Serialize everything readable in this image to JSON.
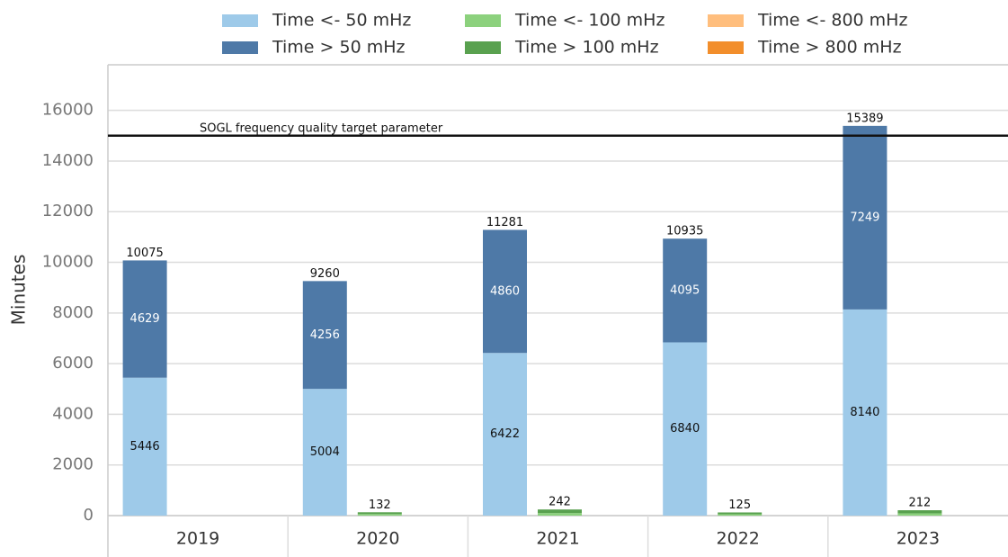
{
  "chart_data": {
    "type": "stacked-grouped-bar",
    "y_label": "Minutes",
    "categories": [
      "2019",
      "2020",
      "2021",
      "2022",
      "2023"
    ],
    "series": [
      {
        "name": "Time <- 50 mHz",
        "color": "#9ecae9",
        "stack": 0,
        "show_labels": true,
        "label_color": "#111111",
        "values": [
          5446,
          5004,
          6422,
          6840,
          8140
        ]
      },
      {
        "name": "Time > 50 mHz",
        "color": "#4e79a7",
        "stack": 0,
        "show_labels": true,
        "label_color": "#ffffff",
        "values": [
          4629,
          4256,
          4860,
          4095,
          7249
        ]
      },
      {
        "name": "Time <- 100 mHz",
        "color": "#8cd17d",
        "stack": 1,
        "show_labels": false,
        "values": [
          0,
          60,
          100,
          55,
          90
        ]
      },
      {
        "name": "Time > 100 mHz",
        "color": "#59a14f",
        "stack": 1,
        "show_labels": false,
        "values": [
          0,
          72,
          142,
          70,
          122
        ]
      },
      {
        "name": "Time <- 800 mHz",
        "color": "#ffbe7d",
        "stack": 2,
        "show_labels": false,
        "values": [
          0,
          0,
          0,
          0,
          0
        ]
      },
      {
        "name": "Time > 800 mHz",
        "color": "#f28e2b",
        "stack": 2,
        "show_labels": false,
        "values": [
          0,
          0,
          0,
          0,
          0
        ]
      }
    ],
    "stack_totals": [
      [
        10075,
        9260,
        11281,
        10935,
        15389
      ],
      [
        null,
        132,
        242,
        125,
        212
      ],
      [
        null,
        null,
        null,
        null,
        null
      ]
    ],
    "hline": {
      "value": 15000,
      "label": "SOGL frequency quality target parameter"
    },
    "ylim": [
      0,
      17800
    ],
    "yticks": [
      0,
      2000,
      4000,
      6000,
      8000,
      10000,
      12000,
      14000,
      16000
    ],
    "grid": true
  }
}
